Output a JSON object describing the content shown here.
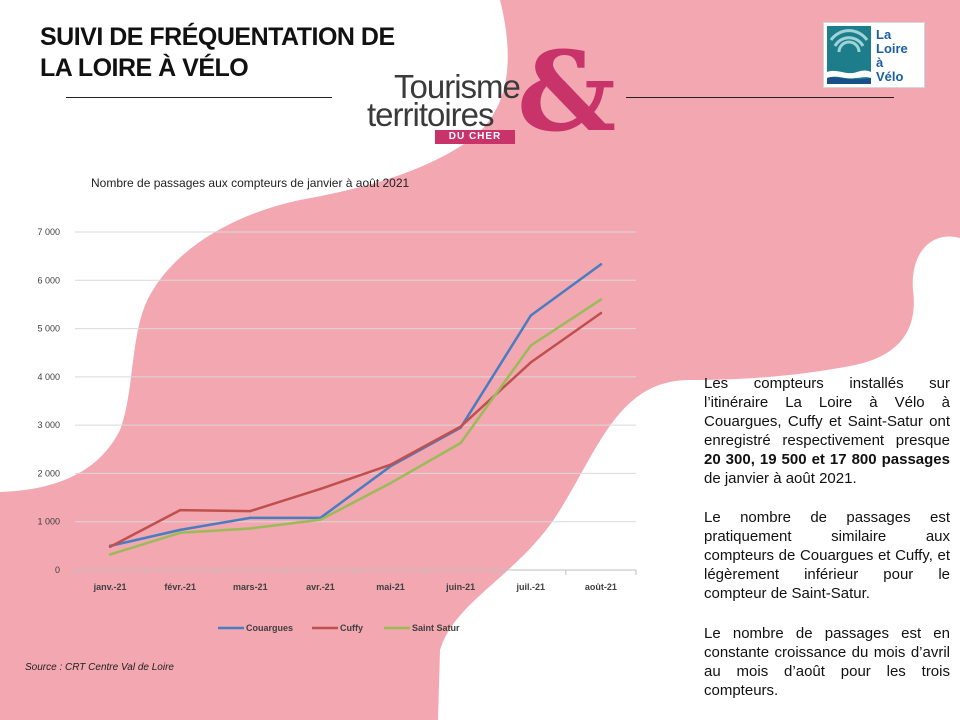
{
  "title_lines": [
    "SUIVI DE FRÉQUENTATION DE",
    "LA LOIRE À VÉLO"
  ],
  "logos": {
    "tourisme": {
      "word1": "Tourisme",
      "word2": "territoires",
      "band": "DU CHER",
      "amp": "&"
    },
    "loire_a_velo": {
      "line1": "La",
      "line2": "Loire",
      "line3": "à",
      "line4": "Vélo"
    }
  },
  "colors": {
    "pink_bg": "#f2a7b1",
    "brand_magenta": "#c8336a",
    "couargues": "#4a7cc0",
    "cuffy": "#c0504d",
    "saint_satur": "#9bbb59"
  },
  "chart_data": {
    "type": "line",
    "title": "Nombre de passages aux compteurs de janvier à août 2021",
    "categories": [
      "janv.-21",
      "févr.-21",
      "mars-21",
      "avr.-21",
      "mai-21",
      "juin-21",
      "juil.-21",
      "août-21"
    ],
    "ylim": [
      0,
      7000
    ],
    "yticks": [
      0,
      1000,
      2000,
      3000,
      4000,
      5000,
      6000,
      7000
    ],
    "ytick_labels": [
      "0",
      "1 000",
      "2 000",
      "3 000",
      "4 000",
      "5 000",
      "6 000",
      "7 000"
    ],
    "grid": true,
    "legend_position": "bottom",
    "series": [
      {
        "name": "Couargues",
        "color": "#4a7cc0",
        "values": [
          500,
          830,
          1080,
          1080,
          2150,
          2950,
          5270,
          6330
        ]
      },
      {
        "name": "Cuffy",
        "color": "#c0504d",
        "values": [
          480,
          1240,
          1220,
          1680,
          2180,
          2970,
          4300,
          5320
        ]
      },
      {
        "name": "Saint Satur",
        "color": "#9bbb59",
        "values": [
          320,
          770,
          860,
          1040,
          1800,
          2630,
          4650,
          5600
        ]
      }
    ]
  },
  "source": "Source :  CRT Centre Val de Loire",
  "paragraphs": [
    [
      {
        "text": "Les compteurs installés sur l’itinéraire La Loire à Vélo à Couargues, Cuffy et Saint-Satur ont enregistré respectivement presque ",
        "bold": false
      },
      {
        "text": "20 300, 19 500 et 17 800 passages",
        "bold": true
      },
      {
        "text": " de janvier à août 2021.",
        "bold": false
      }
    ],
    [
      {
        "text": "Le nombre de passages est pratiquement similaire aux compteurs de Couargues et Cuffy, et légèrement inférieur pour le compteur de Saint-Satur.",
        "bold": false
      }
    ],
    [
      {
        "text": "Le nombre de passages est en constante croissance du mois d’avril au mois d’août pour les trois compteurs.",
        "bold": false
      }
    ]
  ]
}
